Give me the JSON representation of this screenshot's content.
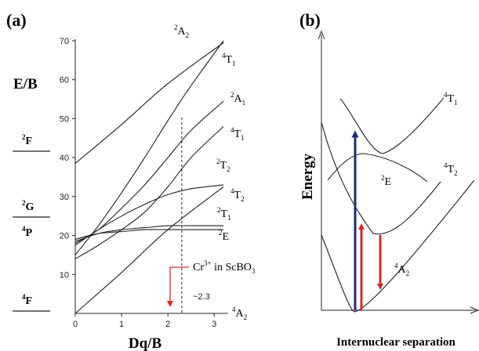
{
  "chart_data": [
    {
      "type": "line",
      "panel_label": "(a)",
      "xlabel": "Dq/B",
      "ylabel": "E/B",
      "xlim": [
        0,
        3.3
      ],
      "ylim": [
        0,
        70
      ],
      "x_ticks": [
        "0",
        "1",
        "2",
        "3"
      ],
      "y_ticks": [
        "10",
        "20",
        "30",
        "40",
        "50",
        "60",
        "70"
      ],
      "free_ion_terms": [
        {
          "sup": "2",
          "base": "F",
          "sub": "",
          "y": 39.5
        },
        {
          "sup": "2",
          "base": "G",
          "sub": "",
          "y": 20.5
        },
        {
          "sup": "4",
          "base": "P",
          "sub": "",
          "y": 15
        },
        {
          "sup": "4",
          "base": "F",
          "sub": "",
          "y": 0
        }
      ],
      "series": [
        {
          "name": "2A2",
          "sup": "2",
          "base": "A",
          "sub": "2",
          "x": [
            0,
            1,
            2,
            3.2
          ],
          "y": [
            38.5,
            48.5,
            59,
            69.5
          ]
        },
        {
          "name": "4T1",
          "sup": "4",
          "base": "T",
          "sub": "1",
          "x": [
            0,
            0.5,
            1,
            1.5,
            2,
            2.5,
            3.2
          ],
          "y": [
            15,
            22.5,
            31,
            40,
            49.5,
            58.5,
            70
          ]
        },
        {
          "name": "2A1",
          "sup": "2",
          "base": "A",
          "sub": "1",
          "x": [
            0,
            0.5,
            1,
            1.5,
            2,
            2.5,
            3.2
          ],
          "y": [
            18,
            21.5,
            27,
            33,
            40,
            47,
            54.5
          ]
        },
        {
          "name": "4T1",
          "sup": "4",
          "base": "T",
          "sub": "1",
          "x": [
            0,
            0.5,
            1,
            1.5,
            2,
            2.5,
            3.2
          ],
          "y": [
            14,
            17.5,
            21.5,
            26,
            32.5,
            40,
            48
          ]
        },
        {
          "name": "2T2",
          "sup": "2",
          "base": "T",
          "sub": "2",
          "x": [
            0,
            0.5,
            1,
            1.5,
            2,
            2.5,
            3.2
          ],
          "y": [
            17.5,
            21.5,
            25,
            28,
            30.5,
            32,
            33
          ]
        },
        {
          "name": "4T2",
          "sup": "4",
          "base": "T",
          "sub": "2",
          "x": [
            0,
            1,
            2,
            3.2
          ],
          "y": [
            0,
            10.5,
            21.5,
            32.5
          ]
        },
        {
          "name": "2T1",
          "sup": "2",
          "base": "T",
          "sub": "1",
          "x": [
            0,
            0.5,
            1,
            1.5,
            2,
            2.5,
            3.2
          ],
          "y": [
            18.5,
            20.5,
            21.5,
            22,
            22.5,
            22.5,
            22.5
          ]
        },
        {
          "name": "2E",
          "sup": "2",
          "base": "E",
          "sub": "",
          "x": [
            0,
            0.5,
            1,
            1.5,
            2,
            2.5,
            3.2
          ],
          "y": [
            19,
            20.5,
            21,
            21.5,
            21.5,
            21.5,
            21.5
          ]
        },
        {
          "name": "4A2",
          "sup": "4",
          "base": "A",
          "sub": "2",
          "x": [
            0,
            3.2
          ],
          "y": [
            0,
            0
          ]
        }
      ],
      "marker": {
        "x": 2.3,
        "text": "~2.3"
      },
      "annotation": {
        "prefix": "Cr",
        "sup": "3+",
        "mid": " in ScBO",
        "sub": "3"
      }
    },
    {
      "type": "line",
      "panel_label": "(b)",
      "xlabel": "Internuclear separation",
      "ylabel": "Energy",
      "curves": [
        {
          "name": "4A2",
          "sup": "4",
          "base": "A",
          "sub": "2"
        },
        {
          "name": "2E",
          "sup": "2",
          "base": "E",
          "sub": ""
        },
        {
          "name": "4T2",
          "sup": "4",
          "base": "T",
          "sub": "2"
        },
        {
          "name": "4T1",
          "sup": "4",
          "base": "T",
          "sub": "1"
        }
      ],
      "arrows": [
        {
          "from": "4A2",
          "to": "4T1",
          "color": "#1f2a78"
        },
        {
          "from": "4A2",
          "to": "4T2",
          "color": "#d12b2b"
        },
        {
          "from": "4T2",
          "to": "4A2",
          "color": "#d12b2b"
        }
      ]
    }
  ]
}
